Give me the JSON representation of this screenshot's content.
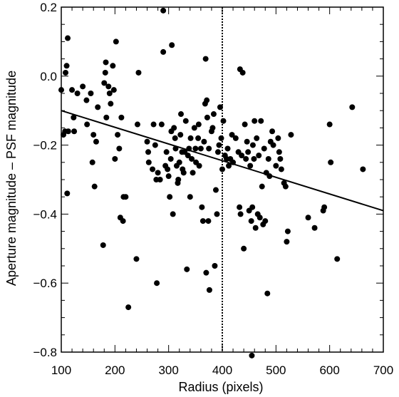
{
  "chart_data": {
    "type": "scatter",
    "xlabel": "Radius (pixels)",
    "ylabel": "Aperture magnitude – PSF magnitude",
    "xlim": [
      100,
      700
    ],
    "ylim": [
      -0.8,
      0.2
    ],
    "x_ticks": [
      100,
      200,
      300,
      400,
      500,
      600,
      700
    ],
    "x_tick_labels": [
      "100",
      "200",
      "300",
      "400",
      "500",
      "600",
      "700"
    ],
    "y_ticks": [
      -0.8,
      -0.6,
      -0.4,
      -0.2,
      0.0,
      0.2
    ],
    "y_tick_labels": [
      "−0.8",
      "−0.6",
      "−0.4",
      "−0.2",
      "0.0",
      "0.2"
    ],
    "grid": false,
    "fit_line": {
      "x": [
        100,
        700
      ],
      "y": [
        -0.1,
        -0.39
      ]
    },
    "reference_line": {
      "x": 400,
      "style": "dotted"
    },
    "series": [
      {
        "points": [
          [
            100,
            -0.04
          ],
          [
            104,
            -0.17
          ],
          [
            107,
            -0.16
          ],
          [
            108,
            0.01
          ],
          [
            110,
            0.03
          ],
          [
            111,
            -0.34
          ],
          [
            112,
            0.11
          ],
          [
            113,
            -0.16
          ],
          [
            120,
            -0.04
          ],
          [
            123,
            -0.12
          ],
          [
            124,
            -0.16
          ],
          [
            130,
            -0.05
          ],
          [
            140,
            -0.03
          ],
          [
            147,
            -0.07
          ],
          [
            148,
            -0.14
          ],
          [
            155,
            -0.05
          ],
          [
            158,
            -0.25
          ],
          [
            160,
            -0.17
          ],
          [
            162,
            -0.32
          ],
          [
            165,
            -0.19
          ],
          [
            168,
            -0.09
          ],
          [
            178,
            -0.49
          ],
          [
            180,
            -0.02
          ],
          [
            182,
            0.01
          ],
          [
            183,
            0.04
          ],
          [
            184,
            -0.12
          ],
          [
            188,
            -0.03
          ],
          [
            190,
            -0.05
          ],
          [
            192,
            -0.08
          ],
          [
            196,
            0.03
          ],
          [
            198,
            -0.04
          ],
          [
            200,
            -0.24
          ],
          [
            202,
            0.1
          ],
          [
            205,
            -0.17
          ],
          [
            208,
            -0.21
          ],
          [
            210,
            -0.41
          ],
          [
            212,
            -0.12
          ],
          [
            215,
            -0.42
          ],
          [
            216,
            -0.35
          ],
          [
            220,
            -0.35
          ],
          [
            225,
            -0.67
          ],
          [
            240,
            -0.53
          ],
          [
            242,
            -0.14
          ],
          [
            244,
            0.01
          ],
          [
            260,
            -0.19
          ],
          [
            262,
            -0.22
          ],
          [
            263,
            -0.25
          ],
          [
            270,
            -0.27
          ],
          [
            272,
            -0.14
          ],
          [
            275,
            -0.2
          ],
          [
            277,
            -0.3
          ],
          [
            278,
            -0.6
          ],
          [
            280,
            -0.28
          ],
          [
            284,
            -0.3
          ],
          [
            287,
            -0.14
          ],
          [
            290,
            0.07
          ],
          [
            290,
            0.19
          ],
          [
            294,
            -0.26
          ],
          [
            296,
            -0.22
          ],
          [
            298,
            -0.27
          ],
          [
            300,
            -0.29
          ],
          [
            302,
            -0.35
          ],
          [
            304,
            -0.24
          ],
          [
            305,
            -0.16
          ],
          [
            306,
            0.09
          ],
          [
            308,
            -0.4
          ],
          [
            310,
            -0.15
          ],
          [
            312,
            -0.18
          ],
          [
            313,
            -0.21
          ],
          [
            315,
            -0.26
          ],
          [
            317,
            -0.31
          ],
          [
            318,
            -0.3
          ],
          [
            320,
            -0.25
          ],
          [
            322,
            -0.17
          ],
          [
            323,
            -0.11
          ],
          [
            325,
            -0.22
          ],
          [
            326,
            -0.27
          ],
          [
            328,
            -0.28
          ],
          [
            330,
            -0.22
          ],
          [
            332,
            -0.13
          ],
          [
            334,
            -0.56
          ],
          [
            336,
            -0.23
          ],
          [
            338,
            -0.21
          ],
          [
            340,
            -0.35
          ],
          [
            341,
            -0.18
          ],
          [
            343,
            -0.24
          ],
          [
            345,
            -0.28
          ],
          [
            348,
            -0.15
          ],
          [
            350,
            -0.21
          ],
          [
            351,
            -0.25
          ],
          [
            355,
            -0.18
          ],
          [
            356,
            -0.14
          ],
          [
            357,
            -0.26
          ],
          [
            360,
            -0.21
          ],
          [
            362,
            -0.38
          ],
          [
            364,
            -0.42
          ],
          [
            366,
            -0.19
          ],
          [
            368,
            -0.08
          ],
          [
            369,
            0.05
          ],
          [
            370,
            -0.57
          ],
          [
            371,
            -0.07
          ],
          [
            372,
            -0.12
          ],
          [
            374,
            -0.42
          ],
          [
            375,
            -0.21
          ],
          [
            376,
            -0.62
          ],
          [
            380,
            -0.16
          ],
          [
            382,
            -0.15
          ],
          [
            384,
            -0.11
          ],
          [
            386,
            -0.55
          ],
          [
            388,
            -0.33
          ],
          [
            390,
            -0.4
          ],
          [
            392,
            -0.22
          ],
          [
            394,
            -0.2
          ],
          [
            396,
            -0.09
          ],
          [
            398,
            -0.18
          ],
          [
            400,
            -0.27
          ],
          [
            402,
            -0.13
          ],
          [
            405,
            -0.23
          ],
          [
            408,
            -0.24
          ],
          [
            410,
            -0.21
          ],
          [
            412,
            -0.26
          ],
          [
            415,
            -0.24
          ],
          [
            418,
            -0.17
          ],
          [
            420,
            -0.25
          ],
          [
            425,
            -0.18
          ],
          [
            430,
            -0.22
          ],
          [
            432,
            -0.38
          ],
          [
            433,
            0.02
          ],
          [
            434,
            -0.4
          ],
          [
            436,
            -0.23
          ],
          [
            438,
            0.01
          ],
          [
            440,
            -0.5
          ],
          [
            442,
            -0.14
          ],
          [
            444,
            -0.24
          ],
          [
            446,
            -0.19
          ],
          [
            448,
            -0.22
          ],
          [
            450,
            -0.39
          ],
          [
            452,
            -0.26
          ],
          [
            454,
            -0.42
          ],
          [
            455,
            -0.81
          ],
          [
            456,
            -0.38
          ],
          [
            457,
            -0.2
          ],
          [
            459,
            -0.24
          ],
          [
            460,
            -0.13
          ],
          [
            462,
            -0.44
          ],
          [
            464,
            -0.18
          ],
          [
            466,
            -0.4
          ],
          [
            468,
            -0.23
          ],
          [
            470,
            -0.41
          ],
          [
            472,
            -0.13
          ],
          [
            474,
            -0.32
          ],
          [
            476,
            -0.43
          ],
          [
            478,
            -0.21
          ],
          [
            480,
            -0.42
          ],
          [
            482,
            -0.28
          ],
          [
            484,
            -0.63
          ],
          [
            486,
            -0.24
          ],
          [
            488,
            -0.29
          ],
          [
            490,
            -0.19
          ],
          [
            493,
            -0.16
          ],
          [
            495,
            -0.2
          ],
          [
            500,
            -0.26
          ],
          [
            504,
            -0.18
          ],
          [
            506,
            -0.22
          ],
          [
            508,
            -0.24
          ],
          [
            510,
            -0.27
          ],
          [
            515,
            -0.31
          ],
          [
            518,
            -0.32
          ],
          [
            520,
            -0.48
          ],
          [
            522,
            -0.45
          ],
          [
            528,
            -0.17
          ],
          [
            560,
            -0.41
          ],
          [
            572,
            -0.44
          ],
          [
            588,
            -0.39
          ],
          [
            590,
            -0.38
          ],
          [
            600,
            -0.14
          ],
          [
            602,
            -0.25
          ],
          [
            614,
            -0.53
          ],
          [
            642,
            -0.09
          ],
          [
            662,
            -0.27
          ]
        ]
      }
    ]
  }
}
